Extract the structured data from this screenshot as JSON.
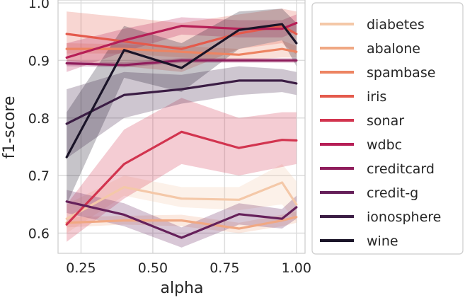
{
  "chart_data": {
    "type": "line",
    "title": "",
    "xlabel": "alpha",
    "ylabel": "f1-score",
    "xlim": [
      0.17,
      1.03
    ],
    "ylim": [
      0.565,
      1.005
    ],
    "xticks": [
      0.25,
      0.5,
      0.75,
      1.0
    ],
    "xtick_labels": [
      "0.25",
      "0.50",
      "0.75",
      "1.00"
    ],
    "yticks": [
      0.6,
      0.7,
      0.8,
      0.9,
      1.0
    ],
    "ytick_labels": [
      "0.6",
      "0.7",
      "0.8",
      "0.9",
      "1.0"
    ],
    "grid": true,
    "legend_position": "outside-right",
    "x": [
      0.2,
      0.4,
      0.6,
      0.8,
      0.95,
      1.0
    ],
    "series": [
      {
        "name": "diabetes",
        "color": "#f4c8a8",
        "values": [
          0.625,
          0.68,
          0.66,
          0.658,
          0.688,
          0.65
        ],
        "lower": [
          0.6,
          0.665,
          0.645,
          0.64,
          0.65,
          0.62
        ],
        "upper": [
          0.65,
          0.7,
          0.68,
          0.68,
          0.72,
          0.69
        ]
      },
      {
        "name": "abalone",
        "color": "#f0a883",
        "values": [
          0.618,
          0.622,
          0.622,
          0.608,
          0.622,
          0.628
        ],
        "lower": [
          0.61,
          0.615,
          0.612,
          0.6,
          0.612,
          0.618
        ],
        "upper": [
          0.628,
          0.63,
          0.632,
          0.618,
          0.632,
          0.638
        ]
      },
      {
        "name": "spambase",
        "color": "#ed8462",
        "values": [
          0.92,
          0.92,
          0.915,
          0.91,
          0.92,
          0.915
        ],
        "lower": [
          0.912,
          0.912,
          0.905,
          0.9,
          0.905,
          0.905
        ],
        "upper": [
          0.93,
          0.928,
          0.925,
          0.92,
          0.935,
          0.925
        ]
      },
      {
        "name": "iris",
        "color": "#e45a4c",
        "values": [
          0.946,
          0.933,
          0.92,
          0.947,
          0.96,
          0.946
        ],
        "lower": [
          0.9,
          0.89,
          0.88,
          0.92,
          0.93,
          0.91
        ],
        "upper": [
          0.985,
          0.975,
          0.965,
          0.98,
          0.99,
          0.985
        ]
      },
      {
        "name": "sonar",
        "color": "#d2344f",
        "values": [
          0.615,
          0.72,
          0.776,
          0.748,
          0.762,
          0.761
        ],
        "lower": [
          0.585,
          0.66,
          0.72,
          0.7,
          0.715,
          0.72
        ],
        "upper": [
          0.65,
          0.78,
          0.835,
          0.8,
          0.81,
          0.81
        ]
      },
      {
        "name": "wdbc",
        "color": "#b61e56",
        "values": [
          0.905,
          0.935,
          0.96,
          0.955,
          0.955,
          0.965
        ],
        "lower": [
          0.88,
          0.915,
          0.945,
          0.94,
          0.94,
          0.95
        ],
        "upper": [
          0.93,
          0.955,
          0.975,
          0.97,
          0.97,
          0.98
        ]
      },
      {
        "name": "creditcard",
        "color": "#8f1d5c",
        "values": [
          0.895,
          0.892,
          0.9,
          0.9,
          0.9,
          0.9
        ],
        "lower": [
          0.89,
          0.888,
          0.896,
          0.896,
          0.896,
          0.896
        ],
        "upper": [
          0.9,
          0.897,
          0.904,
          0.904,
          0.904,
          0.904
        ]
      },
      {
        "name": "credit-g",
        "color": "#65205a",
        "values": [
          0.655,
          0.632,
          0.592,
          0.633,
          0.625,
          0.645
        ],
        "lower": [
          0.635,
          0.612,
          0.575,
          0.615,
          0.608,
          0.625
        ],
        "upper": [
          0.675,
          0.652,
          0.61,
          0.652,
          0.642,
          0.665
        ]
      },
      {
        "name": "ionosphere",
        "color": "#3b1d44",
        "values": [
          0.79,
          0.84,
          0.85,
          0.865,
          0.865,
          0.86
        ],
        "lower": [
          0.73,
          0.8,
          0.825,
          0.84,
          0.845,
          0.84
        ],
        "upper": [
          0.85,
          0.88,
          0.875,
          0.89,
          0.885,
          0.88
        ]
      },
      {
        "name": "wine",
        "color": "#1a1428",
        "values": [
          0.732,
          0.918,
          0.887,
          0.953,
          0.963,
          0.93
        ],
        "lower": [
          0.65,
          0.87,
          0.845,
          0.92,
          0.935,
          0.89
        ],
        "upper": [
          0.81,
          0.96,
          0.93,
          0.985,
          0.99,
          0.965
        ]
      }
    ]
  }
}
